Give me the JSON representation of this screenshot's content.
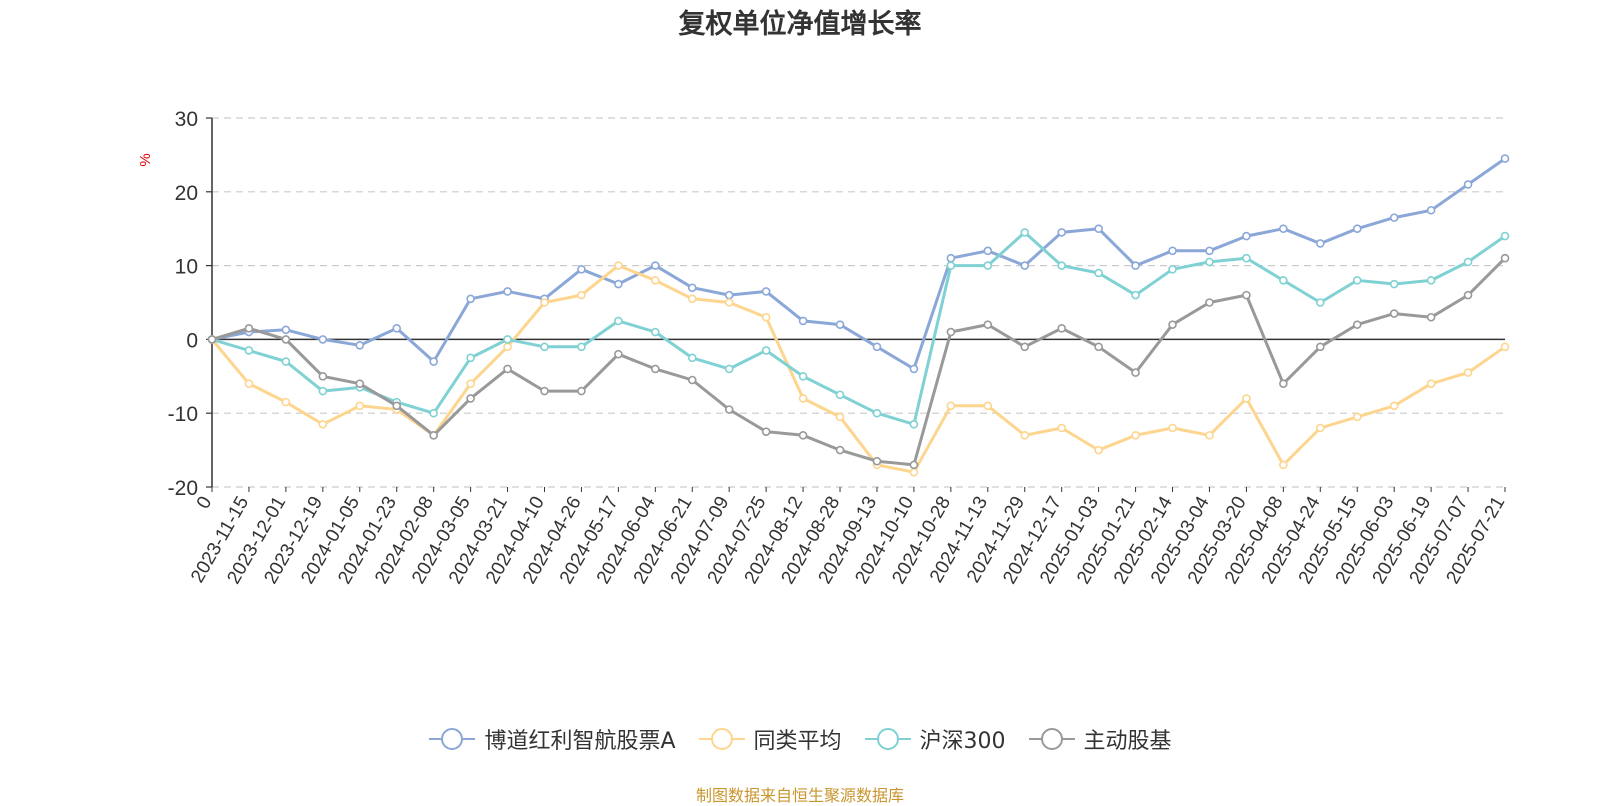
{
  "chart_data": {
    "type": "line",
    "title": "复权单位净值增长率",
    "ylabel": "%",
    "ylim": [
      -20,
      30
    ],
    "yticks": [
      -20,
      -10,
      0,
      10,
      20,
      30
    ],
    "grid": true,
    "legend_position": "bottom",
    "x_tick_labels": [
      "0",
      "2023-11-15",
      "2023-12-01",
      "2023-12-19",
      "2024-01-05",
      "2024-01-23",
      "2024-02-08",
      "2024-03-05",
      "2024-03-21",
      "2024-04-10",
      "2024-04-26",
      "2024-05-17",
      "2024-06-04",
      "2024-06-21",
      "2024-07-09",
      "2024-07-25",
      "2024-08-12",
      "2024-08-28",
      "2024-09-13",
      "2024-10-10",
      "2024-10-28",
      "2024-11-13",
      "2024-11-29",
      "2024-12-17",
      "2025-01-03",
      "2025-01-21",
      "2025-02-14",
      "2025-03-04",
      "2025-03-20",
      "2025-04-08",
      "2025-04-24",
      "2025-05-15",
      "2025-06-03",
      "2025-06-19",
      "2025-07-07",
      "2025-07-21"
    ],
    "x_index": [
      0,
      1,
      2,
      3,
      4,
      5,
      6,
      7,
      8,
      9,
      10,
      11,
      12,
      13,
      14,
      15,
      16,
      17,
      18,
      19,
      20,
      21,
      22,
      23,
      24,
      25,
      26,
      27,
      28,
      29,
      30,
      31,
      32,
      33,
      34,
      35
    ],
    "series": [
      {
        "name": "博道红利智航股票A",
        "color": "#8aa7d8",
        "values": [
          0,
          1.0,
          1.3,
          0,
          -0.8,
          1.5,
          -3.0,
          5.5,
          6.5,
          5.5,
          9.5,
          7.5,
          10.0,
          7.0,
          6.0,
          6.5,
          2.5,
          2.0,
          -1.0,
          -4.0,
          11.0,
          12.0,
          10.0,
          14.5,
          15.0,
          10.0,
          12.0,
          12.0,
          14.0,
          15.0,
          13.0,
          15.0,
          16.5,
          17.5,
          21.0,
          24.5
        ]
      },
      {
        "name": "同类平均",
        "color": "#fdd58e",
        "values": [
          0,
          -6.0,
          -8.5,
          -11.5,
          -9.0,
          -9.5,
          -13.0,
          -6.0,
          -1.0,
          5.0,
          6.0,
          10.0,
          8.0,
          5.5,
          5.0,
          3.0,
          -8.0,
          -10.5,
          -17.0,
          -18.0,
          -9.0,
          -9.0,
          -13.0,
          -12.0,
          -15.0,
          -13.0,
          -12.0,
          -13.0,
          -8.0,
          -17.0,
          -12.0,
          -10.5,
          -9.0,
          -6.0,
          -4.5,
          -1.0
        ]
      },
      {
        "name": "沪深300",
        "color": "#7fd1d3",
        "values": [
          0,
          -1.5,
          -3.0,
          -7.0,
          -6.5,
          -8.5,
          -10.0,
          -2.5,
          0,
          -1.0,
          -1.0,
          2.5,
          1.0,
          -2.5,
          -4.0,
          -1.5,
          -5.0,
          -7.5,
          -10.0,
          -11.5,
          10.0,
          10.0,
          14.5,
          10.0,
          9.0,
          6.0,
          9.5,
          10.5,
          11.0,
          8.0,
          5.0,
          8.0,
          7.5,
          8.0,
          10.5,
          14.0
        ]
      },
      {
        "name": "主动股基",
        "color": "#999999",
        "values": [
          0,
          1.5,
          0,
          -5.0,
          -6.0,
          -9.0,
          -13.0,
          -8.0,
          -4.0,
          -7.0,
          -7.0,
          -2.0,
          -4.0,
          -5.5,
          -9.5,
          -12.5,
          -13.0,
          -15.0,
          -16.5,
          -17.0,
          1.0,
          2.0,
          -1.0,
          1.5,
          -1.0,
          -4.5,
          2.0,
          5.0,
          6.0,
          -6.0,
          -1.0,
          2.0,
          3.5,
          3.0,
          6.0,
          11.0
        ]
      }
    ]
  },
  "footer": {
    "source": "制图数据来自恒生聚源数据库"
  }
}
